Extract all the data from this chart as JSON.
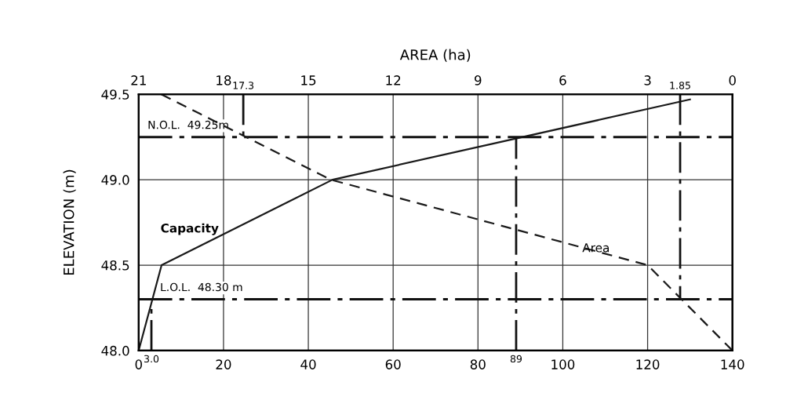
{
  "chart_data": {
    "type": "line",
    "x2label": "AREA (ha)",
    "ylabel": "ELEVATION (m)",
    "series": [
      {
        "name": "Capacity",
        "color": "#1a1a1a",
        "line_style": "solid",
        "x": [
          0,
          5.4,
          45.7,
          130
        ],
        "values": [
          48.0,
          48.5,
          49.0,
          49.47
        ]
      },
      {
        "name": "Area",
        "color": "#1a1a1a",
        "line_style": "dashed",
        "axis": "x2",
        "x": [
          20.2,
          14.2,
          3.0,
          0
        ],
        "values": [
          49.5,
          49.0,
          48.5,
          48.0
        ]
      }
    ],
    "xlim": [
      0,
      140
    ],
    "xticks": [
      0,
      20,
      40,
      60,
      80,
      100,
      120,
      140
    ],
    "x2lim": [
      21,
      0
    ],
    "x2ticks": [
      21,
      18,
      15,
      12,
      9,
      6,
      3,
      0
    ],
    "ylim": [
      48.0,
      49.5
    ],
    "yticks": [
      {
        "value": 48.0,
        "label": "48.0"
      },
      {
        "value": 48.5,
        "label": "48.5"
      },
      {
        "value": 49.0,
        "label": "49.0"
      },
      {
        "value": 49.5,
        "label": "49.5"
      }
    ],
    "ref_lines": [
      {
        "axis": "y",
        "value": 49.25,
        "label": "N.O.L.  49.25m"
      },
      {
        "axis": "y",
        "value": 48.3,
        "label": "L.O.L.  48.30 m"
      },
      {
        "axis": "x",
        "value": 3.0,
        "label": "3.0"
      },
      {
        "axis": "x",
        "value": 89,
        "label": "89"
      },
      {
        "axis": "x2",
        "value": 17.3,
        "label": "17.3"
      },
      {
        "axis": "x2",
        "value": 1.85,
        "label": "1.85"
      }
    ],
    "grid": true,
    "legend": false,
    "marker": "none"
  }
}
